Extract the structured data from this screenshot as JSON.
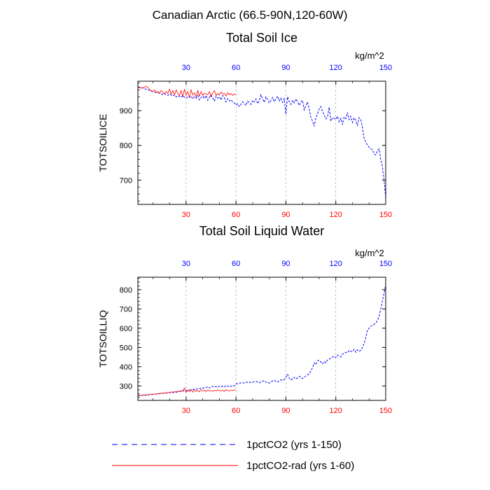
{
  "figure": {
    "title": "Canadian Arctic (66.5-90N,120-60W)"
  },
  "colors": {
    "series_a": "#0000ff",
    "series_b": "#ff0000",
    "bottom_ticks": "#ff0000",
    "top_ticks": "#0000ff",
    "gridline": "#999999"
  },
  "legend": [
    {
      "label": "1pctCO2 (yrs 1-150)",
      "style": "dashed",
      "color": "#0000ff"
    },
    {
      "label": "1pctCO2-rad (yrs 1-60)",
      "style": "solid",
      "color": "#ff0000"
    }
  ],
  "chart_data": [
    {
      "type": "line",
      "title": "Total Soil Ice",
      "ylabel": "TOTSOILICE",
      "top_unit": "kg/m^2",
      "xlim": [
        1,
        150
      ],
      "ylim": [
        630,
        985
      ],
      "xticks": [
        30,
        60,
        90,
        120,
        150
      ],
      "yticks": [
        700,
        800,
        900
      ],
      "x_grid": true,
      "series": [
        {
          "name": "1pctCO2 (yrs 1-150)",
          "style": "dashed",
          "x_start": 1,
          "values": [
            968,
            968,
            966,
            965,
            963,
            962,
            960,
            958,
            956,
            955,
            954,
            952,
            952,
            950,
            948,
            947,
            950,
            946,
            944,
            948,
            945,
            942,
            946,
            940,
            943,
            941,
            938,
            944,
            939,
            936,
            941,
            938,
            942,
            934,
            940,
            936,
            944,
            931,
            938,
            942,
            935,
            944,
            930,
            939,
            945,
            937,
            928,
            942,
            936,
            940,
            931,
            944,
            938,
            926,
            935,
            928,
            932,
            925,
            922,
            916,
            920,
            912,
            918,
            926,
            920,
            915,
            928,
            922,
            918,
            930,
            925,
            934,
            920,
            928,
            946,
            935,
            924,
            940,
            932,
            922,
            930,
            938,
            926,
            934,
            942,
            928,
            936,
            924,
            935,
            890,
            940,
            926,
            918,
            930,
            922,
            934,
            925,
            915,
            926,
            930,
            902,
            915,
            925,
            905,
            880,
            870,
            855,
            880,
            890,
            905,
            912,
            898,
            888,
            876,
            882,
            910,
            870,
            880,
            878,
            875,
            884,
            868,
            878,
            860,
            882,
            877,
            895,
            874,
            884,
            866,
            880,
            872,
            858,
            880,
            875,
            852,
            820,
            810,
            800,
            795,
            790,
            788,
            776,
            772,
            784,
            790,
            760,
            740,
            700,
            650
          ]
        },
        {
          "name": "1pctCO2-rad (yrs 1-60)",
          "style": "solid",
          "x_start": 1,
          "values": [
            966,
            967,
            965,
            966,
            968,
            970,
            967,
            962,
            958,
            955,
            960,
            952,
            956,
            950,
            958,
            953,
            948,
            955,
            950,
            962,
            948,
            958,
            945,
            960,
            950,
            944,
            958,
            940,
            962,
            945,
            955,
            938,
            960,
            945,
            952,
            940,
            958,
            942,
            955,
            944,
            950,
            948,
            946,
            955,
            940,
            952,
            958,
            944,
            950,
            945,
            954,
            948,
            950,
            942,
            952,
            946,
            950,
            944,
            948,
            946
          ]
        }
      ]
    },
    {
      "type": "line",
      "title": "Total Soil Liquid Water",
      "ylabel": "TOTSOILLIQ",
      "top_unit": "kg/m^2",
      "xlim": [
        1,
        150
      ],
      "ylim": [
        225,
        865
      ],
      "xticks": [
        30,
        60,
        90,
        120,
        150
      ],
      "yticks": [
        300,
        400,
        500,
        600,
        700,
        800
      ],
      "x_grid": true,
      "series": [
        {
          "name": "1pctCO2 (yrs 1-150)",
          "style": "dashed",
          "x_start": 1,
          "values": [
            248,
            250,
            251,
            252,
            250,
            253,
            252,
            255,
            254,
            256,
            258,
            257,
            259,
            260,
            262,
            261,
            263,
            262,
            265,
            264,
            266,
            265,
            268,
            267,
            270,
            272,
            271,
            274,
            276,
            275,
            278,
            280,
            279,
            282,
            284,
            283,
            286,
            285,
            290,
            288,
            292,
            291,
            296,
            289,
            295,
            298,
            294,
            297,
            293,
            300,
            296,
            299,
            295,
            302,
            298,
            301,
            297,
            303,
            300,
            310,
            312,
            314,
            316,
            318,
            315,
            320,
            318,
            321,
            316,
            319,
            322,
            324,
            320,
            317,
            322,
            325,
            328,
            320,
            318,
            315,
            322,
            326,
            330,
            324,
            320,
            326,
            332,
            328,
            334,
            345,
            360,
            340,
            330,
            338,
            345,
            336,
            342,
            350,
            345,
            338,
            345,
            352,
            358,
            362,
            380,
            395,
            420,
            410,
            430,
            435,
            425,
            415,
            428,
            420,
            435,
            440,
            445,
            450,
            455,
            448,
            460,
            455,
            450,
            465,
            470,
            475,
            472,
            485,
            480,
            478,
            490,
            475,
            488,
            480,
            485,
            500,
            520,
            550,
            590,
            600,
            610,
            615,
            620,
            625,
            640,
            660,
            700,
            740,
            780,
            825
          ]
        },
        {
          "name": "1pctCO2-rad (yrs 1-60)",
          "style": "solid",
          "x_start": 1,
          "values": [
            250,
            252,
            250,
            253,
            255,
            252,
            256,
            254,
            258,
            255,
            260,
            256,
            262,
            258,
            264,
            260,
            266,
            262,
            268,
            264,
            270,
            266,
            272,
            268,
            274,
            270,
            276,
            272,
            290,
            266,
            278,
            270,
            282,
            268,
            280,
            272,
            276,
            270,
            282,
            274,
            278,
            270,
            280,
            274,
            276,
            272,
            278,
            274,
            280,
            276,
            274,
            278,
            272,
            280,
            276,
            274,
            278,
            276,
            280,
            278
          ]
        }
      ]
    }
  ]
}
